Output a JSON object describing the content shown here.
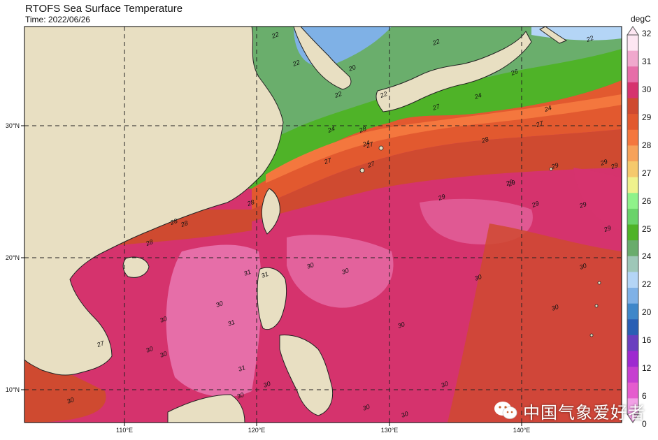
{
  "title": "RTOFS Sea Surface Temperature",
  "subtitle": "Time: 2022/06/26",
  "colorbar": {
    "unit": "degC",
    "ticks": [
      "32",
      "31",
      "30",
      "29",
      "28",
      "27",
      "26",
      "25",
      "24",
      "22",
      "20",
      "16",
      "12",
      "6",
      "0"
    ],
    "colors": [
      "#fde6f2",
      "#f0a8cd",
      "#e66ea8",
      "#d6336e",
      "#cf4a30",
      "#e2592f",
      "#f4773e",
      "#f6a25a",
      "#f5c96c",
      "#eff28d",
      "#8ff28a",
      "#6ad36a",
      "#4fb328",
      "#69ac6c",
      "#9ec7b8",
      "#b4d5f6",
      "#7fb1e6",
      "#3f87c9",
      "#2a5fb4",
      "#6a3fbf",
      "#9e2ad0",
      "#c63fd0",
      "#e55cce",
      "#f2a0e6"
    ]
  },
  "map": {
    "lon_labels": [
      "110°E",
      "120°E",
      "130°E",
      "140°E"
    ],
    "lat_labels": [
      "30°N",
      "20°N",
      "10°N"
    ],
    "contour_labels": [
      "22",
      "22",
      "22",
      "22",
      "22",
      "22",
      "20",
      "24",
      "24",
      "24",
      "24",
      "26",
      "27",
      "27",
      "27",
      "27",
      "27",
      "28",
      "28",
      "28",
      "28",
      "28",
      "28",
      "29",
      "29",
      "29",
      "29",
      "29",
      "29",
      "29",
      "30",
      "30",
      "30",
      "30",
      "30",
      "30",
      "30",
      "30",
      "30",
      "30",
      "30",
      "30",
      "30",
      "30",
      "30",
      "30",
      "31",
      "31",
      "31",
      "31",
      "29",
      "29",
      "27"
    ]
  },
  "watermark": "中国气象爱好者"
}
